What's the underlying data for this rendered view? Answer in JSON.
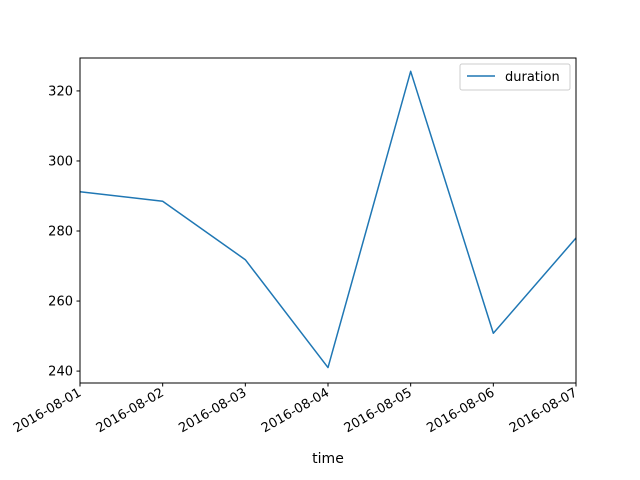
{
  "chart_data": {
    "type": "line",
    "title": "",
    "xlabel": "time",
    "ylabel": "",
    "x": [
      "2016-08-01",
      "2016-08-02",
      "2016-08-03",
      "2016-08-04",
      "2016-08-05",
      "2016-08-06",
      "2016-08-07"
    ],
    "xlim": [
      "2016-08-01",
      "2016-08-07"
    ],
    "ylim": [
      236.6,
      329.4
    ],
    "y_ticks": [
      240,
      260,
      280,
      300,
      320
    ],
    "series": [
      {
        "name": "duration",
        "color": "#1f77b4",
        "values": [
          291.2,
          288.5,
          271.8,
          241.0,
          325.6,
          250.8,
          278.0
        ]
      }
    ],
    "grid": false,
    "legend_position": "top-right"
  }
}
